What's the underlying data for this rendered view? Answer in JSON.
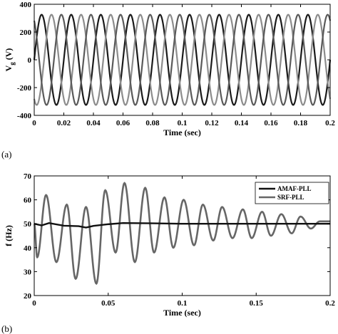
{
  "chart_data": [
    {
      "type": "line",
      "panel_label": "(a)",
      "xlabel": "Time (sec)",
      "ylabel": "V_g (V)",
      "ylabel_main": "V",
      "ylabel_sub": "g",
      "ylabel_unit": "(V)",
      "xlim": [
        0,
        0.2
      ],
      "ylim": [
        -400,
        400
      ],
      "xticks": [
        0,
        0.02,
        0.04,
        0.06,
        0.08,
        0.1,
        0.12,
        0.14,
        0.16,
        0.18,
        0.2
      ],
      "xtick_labels": [
        "0",
        "0.02",
        "0.04",
        "0.06",
        "0.08",
        "0.1",
        "0.12",
        "0.14",
        "0.16",
        "0.18",
        "0.2"
      ],
      "yticks": [
        -400,
        -200,
        0,
        200,
        400
      ],
      "ytick_labels": [
        "-400",
        "-200",
        "0",
        "200",
        "400"
      ],
      "grid": false,
      "series": [
        {
          "amplitude": 325,
          "frequency_hz": 50,
          "phase_deg": 0,
          "color": "#1a1a1a"
        },
        {
          "amplitude": 325,
          "frequency_hz": 50,
          "phase_deg": -120,
          "color": "#8c8c8c"
        },
        {
          "amplitude": 325,
          "frequency_hz": 50,
          "phase_deg": 120,
          "color": "#5a5a5a"
        }
      ]
    },
    {
      "type": "line",
      "panel_label": "(b)",
      "xlabel": "Time (sec)",
      "ylabel": "f (Hz)",
      "xlim": [
        0,
        0.2
      ],
      "ylim": [
        20,
        70
      ],
      "xticks": [
        0,
        0.05,
        0.1,
        0.15,
        0.2
      ],
      "xtick_labels": [
        "0",
        "0.05",
        "0.1",
        "0.15",
        "0.2"
      ],
      "yticks": [
        20,
        30,
        40,
        50,
        60,
        70
      ],
      "ytick_labels": [
        "20",
        "30",
        "40",
        "50",
        "60",
        "70"
      ],
      "grid": false,
      "legend_position": "top-right",
      "series": [
        {
          "name": "AMAF-PLL",
          "color": "#111111",
          "x": [
            0,
            0.005,
            0.01,
            0.02,
            0.03,
            0.035,
            0.04,
            0.05,
            0.06,
            0.08,
            0.1,
            0.12,
            0.15,
            0.2
          ],
          "values": [
            50,
            49.3,
            50.3,
            49.2,
            49,
            48.4,
            49.1,
            49.8,
            50.3,
            50.2,
            50,
            50,
            50,
            50
          ]
        },
        {
          "name": "SRF-PLL",
          "color": "#666666",
          "x": [
            0,
            0.002,
            0.008,
            0.015,
            0.022,
            0.028,
            0.035,
            0.042,
            0.048,
            0.055,
            0.061,
            0.068,
            0.075,
            0.081,
            0.088,
            0.094,
            0.101,
            0.108,
            0.114,
            0.121,
            0.127,
            0.134,
            0.141,
            0.147,
            0.154,
            0.16,
            0.167,
            0.174,
            0.18,
            0.187,
            0.193,
            0.2
          ],
          "values": [
            50,
            36,
            62,
            34,
            58,
            27,
            57,
            25,
            64,
            38,
            67,
            34,
            65,
            38,
            61,
            40,
            60,
            41,
            58,
            43,
            57,
            44,
            56,
            44,
            55,
            45,
            54,
            46,
            53,
            48,
            51,
            51
          ]
        }
      ]
    }
  ]
}
